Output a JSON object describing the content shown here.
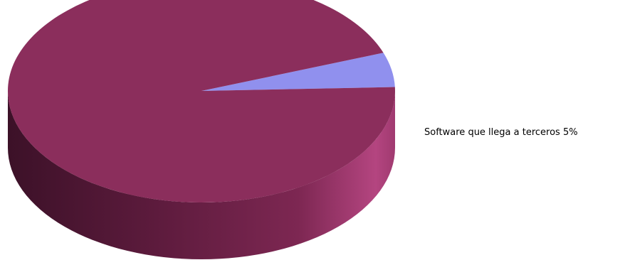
{
  "chart_data": {
    "type": "pie",
    "style": "3d",
    "slices": [
      {
        "label": "Software que llega a terceros 5%",
        "value": 5,
        "color": "#9090ee"
      },
      {
        "label": "",
        "value": 95,
        "color": "#8b2e5c"
      }
    ]
  }
}
